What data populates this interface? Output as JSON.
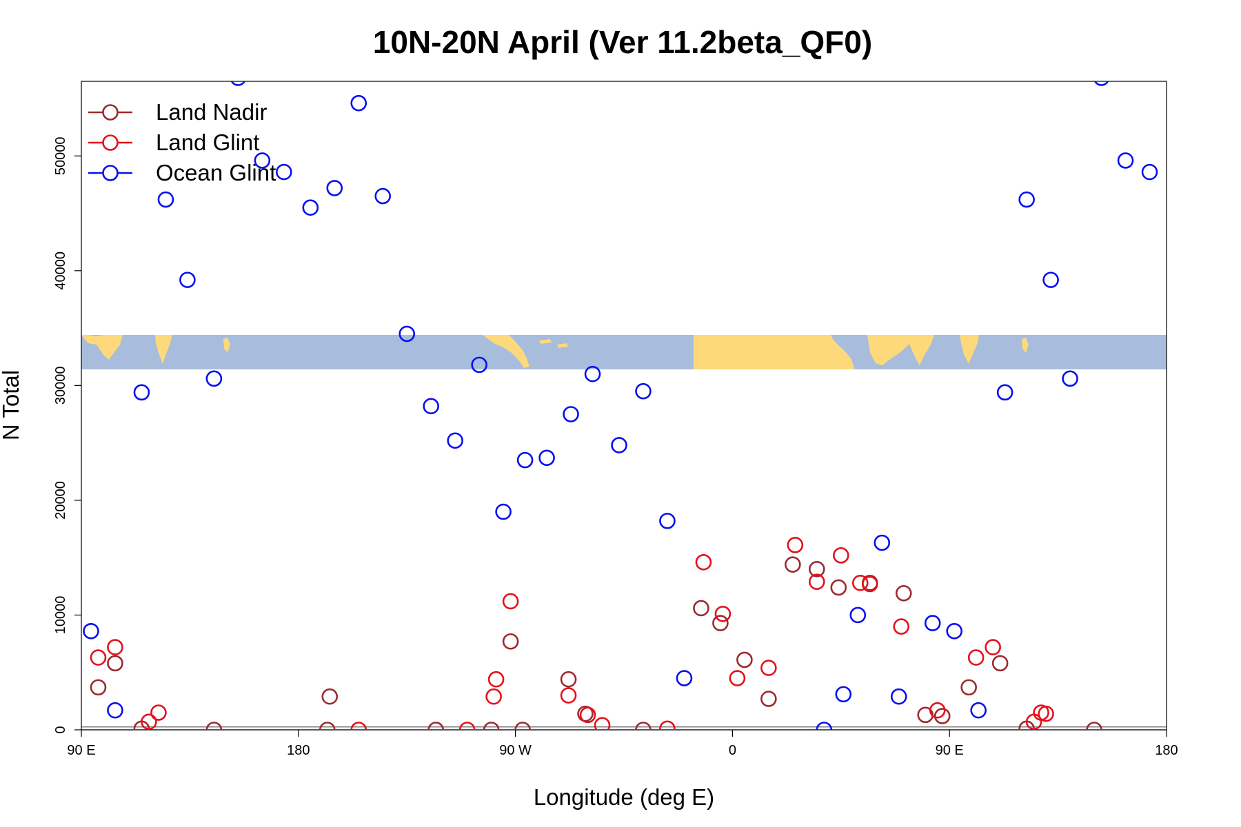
{
  "chart_data": {
    "type": "scatter",
    "title": "10N-20N April (Ver 11.2beta_QF0)",
    "xlabel": "Longitude (deg E)",
    "ylabel": "N Total",
    "xlim": [
      90,
      540
    ],
    "ylim": [
      0,
      56500
    ],
    "x_ticks": [
      {
        "value": 90,
        "label": "90 E"
      },
      {
        "value": 180,
        "label": "180"
      },
      {
        "value": 270,
        "label": "90 W"
      },
      {
        "value": 360,
        "label": "0"
      },
      {
        "value": 450,
        "label": "90 E"
      },
      {
        "value": 540,
        "label": "180"
      }
    ],
    "y_ticks": [
      {
        "value": 0,
        "label": "0"
      },
      {
        "value": 10000,
        "label": "10000"
      },
      {
        "value": 20000,
        "label": "20000"
      },
      {
        "value": 30000,
        "label": "30000"
      },
      {
        "value": 40000,
        "label": "40000"
      },
      {
        "value": 50000,
        "label": "50000"
      }
    ],
    "map_band": {
      "description": "world map strip 10N-20N",
      "y_range": [
        31500,
        34500
      ],
      "ocean_color": "#a8bcdc",
      "land_color": "#fdd97c"
    },
    "horizontal_lines": [
      0,
      250
    ],
    "legend_position": "top-left",
    "series": [
      {
        "name": "Land Nadir",
        "color": "#9b2a2f",
        "points": [
          [
            97,
            3700
          ],
          [
            104,
            5800
          ],
          [
            115,
            100
          ],
          [
            145,
            0
          ],
          [
            192,
            0
          ],
          [
            237,
            0
          ],
          [
            260,
            0
          ],
          [
            193,
            2900
          ],
          [
            268,
            7700
          ],
          [
            292,
            4400
          ],
          [
            273,
            0
          ],
          [
            299,
            1400
          ],
          [
            323,
            0
          ],
          [
            347,
            10600
          ],
          [
            355,
            9300
          ],
          [
            365,
            6100
          ],
          [
            375,
            2700
          ],
          [
            385,
            14400
          ],
          [
            395,
            14000
          ],
          [
            404,
            12400
          ],
          [
            417,
            12800
          ],
          [
            431,
            11900
          ],
          [
            440,
            1300
          ],
          [
            447,
            1200
          ],
          [
            458,
            3700
          ],
          [
            471,
            5800
          ],
          [
            482,
            100
          ],
          [
            510,
            0
          ]
        ]
      },
      {
        "name": "Land Glint",
        "color": "#e3111b",
        "points": [
          [
            97,
            6300
          ],
          [
            104,
            7200
          ],
          [
            118,
            700
          ],
          [
            122,
            1500
          ],
          [
            205,
            0
          ],
          [
            250,
            0
          ],
          [
            261,
            2900
          ],
          [
            262,
            4400
          ],
          [
            268,
            11200
          ],
          [
            292,
            3000
          ],
          [
            300,
            1300
          ],
          [
            306,
            400
          ],
          [
            333,
            100
          ],
          [
            348,
            14600
          ],
          [
            356,
            10100
          ],
          [
            362,
            4500
          ],
          [
            375,
            5400
          ],
          [
            386,
            16100
          ],
          [
            395,
            12900
          ],
          [
            405,
            15200
          ],
          [
            413,
            12800
          ],
          [
            417,
            12700
          ],
          [
            430,
            9000
          ],
          [
            445,
            1700
          ],
          [
            461,
            6300
          ],
          [
            468,
            7200
          ],
          [
            485,
            700
          ],
          [
            488,
            1500
          ],
          [
            490,
            1400
          ]
        ]
      },
      {
        "name": "Ocean Glint",
        "color": "#0710f0",
        "points": [
          [
            94,
            8600
          ],
          [
            104,
            1700
          ],
          [
            115,
            29400
          ],
          [
            125,
            46200
          ],
          [
            134,
            39200
          ],
          [
            145,
            30600
          ],
          [
            155,
            56800
          ],
          [
            165,
            49600
          ],
          [
            174,
            48600
          ],
          [
            185,
            45500
          ],
          [
            195,
            47200
          ],
          [
            205,
            54600
          ],
          [
            215,
            46500
          ],
          [
            225,
            34500
          ],
          [
            235,
            28200
          ],
          [
            245,
            25200
          ],
          [
            255,
            31800
          ],
          [
            265,
            19000
          ],
          [
            274,
            23500
          ],
          [
            283,
            23700
          ],
          [
            293,
            27500
          ],
          [
            302,
            31000
          ],
          [
            313,
            24800
          ],
          [
            323,
            29500
          ],
          [
            333,
            18200
          ],
          [
            340,
            4500
          ],
          [
            398,
            0
          ],
          [
            406,
            3100
          ],
          [
            412,
            10000
          ],
          [
            422,
            16300
          ],
          [
            429,
            2900
          ],
          [
            443,
            9300
          ],
          [
            452,
            8600
          ],
          [
            462,
            1700
          ],
          [
            473,
            29400
          ],
          [
            482,
            46200
          ],
          [
            492,
            39200
          ],
          [
            500,
            30600
          ],
          [
            513,
            56800
          ],
          [
            523,
            49600
          ],
          [
            533,
            48600
          ]
        ]
      }
    ]
  }
}
